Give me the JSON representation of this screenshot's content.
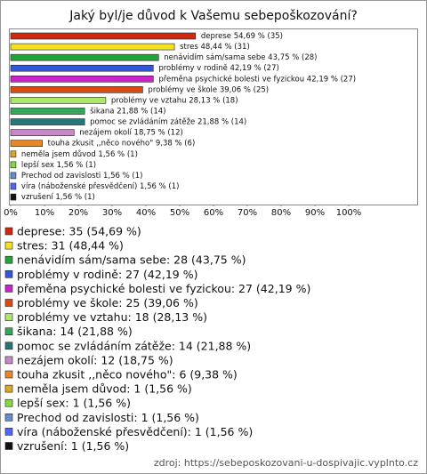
{
  "chart_data": {
    "type": "bar",
    "orientation": "horizontal",
    "title": "Jaký byl/je důvod k Vašemu sebepoškozování?",
    "categories": [
      "deprese",
      "stres",
      "nenávidím sám/sama sebe",
      "problémy v rodině",
      "přeměna psychické bolesti ve fyzickou",
      "problémy ve škole",
      "problémy ve vztahu",
      "šikana",
      "pomoc se zvládáním zátěže",
      "nezájem okolí",
      "touha zkusit ,,něco nového\"",
      "neměla jsem důvod",
      "lepší sex",
      "Prechod od zavislosti",
      "víra (náboženské přesvědčení)",
      "vzrušení"
    ],
    "values": [
      54.69,
      48.44,
      43.75,
      42.19,
      42.19,
      39.06,
      28.13,
      21.88,
      21.88,
      18.75,
      9.38,
      1.56,
      1.56,
      1.56,
      1.56,
      1.56
    ],
    "counts": [
      35,
      31,
      28,
      27,
      27,
      25,
      18,
      14,
      14,
      12,
      6,
      1,
      1,
      1,
      1,
      1
    ],
    "value_labels": [
      "deprese 54,69 % (35)",
      "stres 48,44 % (31)",
      "nenávidím sám/sama sebe 43,75 % (28)",
      "problémy v rodině 42,19 % (27)",
      "přeměna psychické bolesti ve fyzickou 42,19 % (27)",
      "problémy ve škole 39,06 % (25)",
      "problémy ve vztahu 28,13 % (18)",
      "šikana 21,88 % (14)",
      "pomoc se zvládáním zátěže 21,88 % (14)",
      "nezájem okolí 18,75 % (12)",
      "touha zkusit ,,něco nového\" 9,38 % (6)",
      "neměla jsem důvod 1,56 % (1)",
      "lepší sex 1,56 % (1)",
      "Prechod od zavislosti 1,56 % (1)",
      "víra (náboženské přesvědčení) 1,56 % (1)",
      "vzrušení 1,56 % (1)"
    ],
    "legend_labels": [
      "deprese: 35 (54,69 %)",
      "stres: 31 (48,44 %)",
      "nenávidím sám/sama sebe: 28 (43,75 %)",
      "problémy v rodině: 27 (42,19 %)",
      "přeměna psychické bolesti ve fyzickou: 27 (42,19 %)",
      "problémy ve škole: 25 (39,06 %)",
      "problémy ve vztahu: 18 (28,13 %)",
      "šikana: 14 (21,88 %)",
      "pomoc se zvládáním zátěže: 14 (21,88 %)",
      "nezájem okolí: 12 (18,75 %)",
      "touha zkusit ,,něco nového\": 6 (9,38 %)",
      "neměla jsem důvod: 1 (1,56 %)",
      "lepší sex: 1 (1,56 %)",
      "Prechod od zavislosti: 1 (1,56 %)",
      "víra (náboženské přesvědčení): 1 (1,56 %)",
      "vzrušení: 1 (1,56 %)"
    ],
    "colors": [
      "#cc2a10",
      "#f2e21e",
      "#22a43a",
      "#3355dd",
      "#cc22cc",
      "#dd4a12",
      "#aee86a",
      "#34a85a",
      "#267878",
      "#c888c8",
      "#e8862a",
      "#d8a82a",
      "#88d844",
      "#6a8ccc",
      "#5566ee",
      "#111111"
    ],
    "xlim": [
      0,
      120
    ],
    "xticks": [
      {
        "value": 0,
        "label": "0%"
      },
      {
        "value": 10,
        "label": "10%"
      },
      {
        "value": 20,
        "label": "20%"
      },
      {
        "value": 30,
        "label": "30%"
      },
      {
        "value": 40,
        "label": "40%"
      },
      {
        "value": 50,
        "label": "50%"
      },
      {
        "value": 60,
        "label": "60%"
      },
      {
        "value": 70,
        "label": "70%"
      },
      {
        "value": 80,
        "label": "80%"
      },
      {
        "value": 90,
        "label": "90%"
      },
      {
        "value": 100,
        "label": "100%"
      }
    ],
    "source": "zdroj: https://sebeposkozovani-u-dospivajic.vyplnto.cz"
  }
}
